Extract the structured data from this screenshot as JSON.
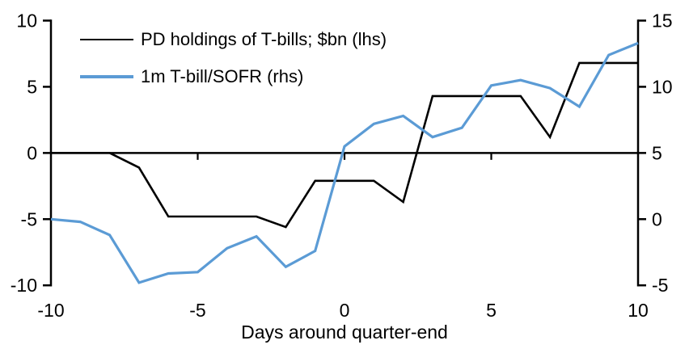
{
  "page": {
    "background": "#ffffff"
  },
  "legend": {
    "items": [
      {
        "label": "PD holdings of T-bills; $bn (lhs)",
        "color": "#000000"
      },
      {
        "label": "1m T-bill/SOFR (rhs)",
        "color": "#5B9BD5"
      }
    ]
  },
  "chart_data": {
    "type": "line",
    "title": "",
    "xlabel": "Days around quarter-end",
    "ylabel_left": "",
    "ylabel_right": "",
    "grid": false,
    "legend_position": "top-left-inside",
    "x": [
      -10,
      -9,
      -8,
      -7,
      -6,
      -5,
      -4,
      -3,
      -2,
      -1,
      0,
      1,
      2,
      3,
      4,
      5,
      6,
      7,
      8,
      9,
      10
    ],
    "x_ticks": [
      -10,
      -5,
      0,
      5,
      10
    ],
    "left_axis": {
      "ticks": [
        10,
        5,
        0,
        -5,
        -10
      ],
      "lim": [
        -10,
        10
      ]
    },
    "right_axis": {
      "ticks": [
        15,
        10,
        5,
        0,
        -5
      ],
      "lim": [
        -5,
        15
      ]
    },
    "series": [
      {
        "name": "PD holdings of T-bills; $bn (lhs)",
        "axis": "lhs",
        "color": "#000000",
        "stroke_width": 2.6,
        "values": [
          0,
          0,
          0,
          -1.1,
          -4.8,
          -4.8,
          -4.8,
          -4.8,
          -5.6,
          -2.1,
          -2.1,
          -2.1,
          -3.7,
          4.3,
          4.3,
          4.3,
          4.3,
          1.2,
          6.8,
          6.8,
          6.8
        ]
      },
      {
        "name": "1m T-bill/SOFR (rhs)",
        "axis": "rhs",
        "color": "#5B9BD5",
        "stroke_width": 3.2,
        "values": [
          0,
          -0.2,
          -1.2,
          -4.8,
          -4.1,
          -4.0,
          -2.2,
          -1.3,
          -3.6,
          -2.4,
          5.5,
          7.2,
          7.8,
          6.2,
          6.9,
          10.1,
          10.5,
          9.9,
          8.5,
          12.4,
          13.3
        ]
      }
    ]
  }
}
